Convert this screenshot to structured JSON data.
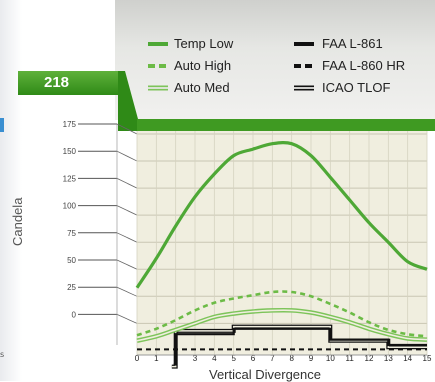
{
  "badge": {
    "value": "218"
  },
  "legend": {
    "temp_low": "Temp Low",
    "auto_high": "Auto High",
    "auto_med": "Auto Med",
    "faa_l861": "FAA L-861",
    "faa_l860hr": "FAA L-860 HR",
    "icao_tlof": "ICAO TLOF"
  },
  "colors": {
    "green_dark": "#4ea836",
    "green_dashed": "#6cbb46",
    "green_light": "#7dc45a",
    "badge_green": "#3f9a22",
    "reference_black": "#111111"
  },
  "chart_data": {
    "type": "line",
    "xlabel": "Vertical Divergence",
    "ylabel": "Candela",
    "x": [
      0,
      1,
      2,
      3,
      4,
      5,
      6,
      7,
      8,
      9,
      10,
      11,
      12,
      13,
      14,
      15
    ],
    "x_ticks": [
      "0",
      "1",
      "2",
      "3",
      "4",
      "5",
      "6",
      "7",
      "8",
      "9",
      "10",
      "11",
      "12",
      "13",
      "14",
      "15"
    ],
    "y_ticks": [
      "175",
      "150",
      "125",
      "100",
      "75",
      "50",
      "25",
      "0"
    ],
    "ylim": [
      -20,
      175
    ],
    "xlim": [
      0,
      15
    ],
    "grid": true,
    "legend_position": "top",
    "series": [
      {
        "name": "Temp Low",
        "style": "solid-thick",
        "color": "#4ea836",
        "x": [
          0,
          1,
          2,
          3,
          4,
          5,
          6,
          7,
          8,
          9,
          10,
          11,
          12,
          13,
          14,
          15
        ],
        "y": [
          33,
          60,
          90,
          117,
          138,
          155,
          161,
          166,
          166,
          155,
          135,
          114,
          93,
          75,
          57,
          50
        ]
      },
      {
        "name": "Auto High",
        "style": "dashed",
        "color": "#6cbb46",
        "x": [
          0,
          1,
          2,
          3,
          4,
          5,
          6,
          7,
          8,
          9,
          10,
          11,
          12,
          13,
          14,
          15
        ],
        "y": [
          -11,
          -5,
          3,
          12,
          19,
          23,
          26,
          29,
          29,
          25,
          18,
          10,
          1,
          -6,
          -10,
          -12
        ]
      },
      {
        "name": "Auto Med",
        "style": "double",
        "color": "#7dc45a",
        "x": [
          0,
          1,
          2,
          3,
          4,
          5,
          6,
          7,
          8,
          9,
          10,
          11,
          12,
          13,
          14,
          15
        ],
        "y": [
          -16,
          -12,
          -6,
          0,
          6,
          9,
          11,
          12,
          12,
          10,
          6,
          1,
          -5,
          -10,
          -14,
          -15
        ]
      },
      {
        "name": "FAA L-861",
        "style": "step-solid-thick",
        "color": "#111111",
        "x": [
          1.9,
          2.0,
          4.9,
          5.0,
          10.0,
          13.0,
          15.0
        ],
        "y": [
          -38,
          -10,
          -10,
          -5,
          -15,
          -20,
          -20
        ]
      },
      {
        "name": "FAA L-860 HR",
        "style": "dashed",
        "color": "#111111",
        "x": [
          0,
          15
        ],
        "y": [
          -24,
          -24
        ]
      },
      {
        "name": "ICAO TLOF",
        "style": "step-double",
        "color": "#111111",
        "x": [
          1.8,
          2.0,
          4.9,
          5.0,
          10.0,
          12.9,
          13.0,
          15.0
        ],
        "y": [
          -40,
          -7,
          -7,
          -3,
          -16,
          -16,
          -22,
          -22
        ]
      }
    ]
  }
}
